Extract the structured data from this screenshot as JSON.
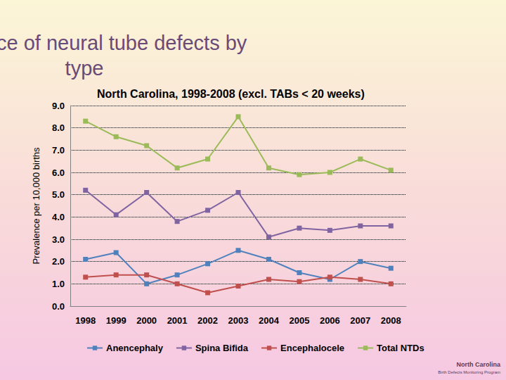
{
  "chart_data": {
    "type": "line",
    "title": "Prevalence of neural tube defects by type",
    "subtitle": "North Carolina, 1998-2008 (excl. TABs < 20 weeks)",
    "y_label": "Prevalence per 10,000 births",
    "annotations": [
      "North Carolina",
      "Birth Defects Monitoring Program"
    ],
    "categories": [
      "1998",
      "1999",
      "2000",
      "2001",
      "2002",
      "2003",
      "2004",
      "2005",
      "2006",
      "2007",
      "2008"
    ],
    "series": [
      {
        "name": "Anencephaly",
        "color": "#4f81bd",
        "values": [
          2.1,
          2.4,
          1.0,
          1.4,
          1.9,
          2.5,
          2.1,
          1.5,
          1.2,
          2.0,
          1.7
        ]
      },
      {
        "name": "Spina Bifida",
        "color": "#8064a2",
        "values": [
          5.2,
          4.1,
          5.1,
          3.8,
          4.3,
          5.1,
          3.1,
          3.5,
          3.4,
          3.6,
          3.6
        ]
      },
      {
        "name": "Encephalocele",
        "color": "#c0504d",
        "values": [
          1.3,
          1.4,
          1.4,
          1.0,
          0.6,
          0.9,
          1.2,
          1.1,
          1.3,
          1.2,
          1.0
        ]
      },
      {
        "name": "Total NTDs",
        "color": "#9bbb59",
        "values": [
          8.3,
          7.6,
          7.2,
          6.2,
          6.6,
          8.5,
          6.2,
          5.9,
          6.0,
          6.6,
          6.1
        ]
      }
    ],
    "ylim": [
      0,
      9
    ],
    "yticks": [
      {
        "value": 0,
        "label": "0.0"
      },
      {
        "value": 1,
        "label": "1.0"
      },
      {
        "value": 2,
        "label": "2.0"
      },
      {
        "value": 3,
        "label": "3.0"
      },
      {
        "value": 4,
        "label": "4.0"
      },
      {
        "value": 5,
        "label": "5.0"
      },
      {
        "value": 6,
        "label": "6.0"
      },
      {
        "value": 7,
        "label": "7.0"
      },
      {
        "value": 8,
        "label": "8.0"
      },
      {
        "value": 9,
        "label": "9.0"
      }
    ],
    "grid": true,
    "legend": "bottom",
    "marker": "square"
  }
}
